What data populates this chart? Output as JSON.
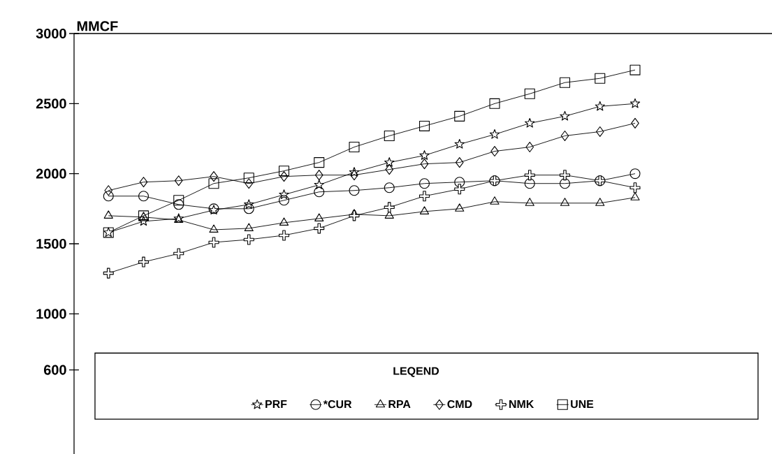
{
  "chart_data": {
    "type": "line",
    "ylabel": "MMCF",
    "legend_title": "LEQEND",
    "legend": "bottom",
    "line_style": "solid",
    "categories": [
      null,
      null,
      null,
      null,
      null,
      null,
      null,
      null,
      null,
      null,
      null,
      null,
      null,
      null,
      null,
      null
    ],
    "ylim": [
      0,
      3000
    ],
    "yticks": [
      600,
      1000,
      1500,
      2000,
      2500,
      3000
    ],
    "series": [
      {
        "name": "PRF",
        "color": "#000000",
        "marker": "star",
        "values": [
          1580,
          1660,
          1680,
          1740,
          1780,
          1850,
          1920,
          2010,
          2080,
          2130,
          2210,
          2280,
          2360,
          2410,
          2480,
          2500
        ]
      },
      {
        "name": "*CUR",
        "color": "#000000",
        "marker": "circle",
        "values": [
          1840,
          1840,
          1780,
          1750,
          1750,
          1810,
          1870,
          1880,
          1900,
          1930,
          1940,
          1950,
          1930,
          1930,
          1950,
          2000
        ]
      },
      {
        "name": "RPA",
        "color": "#000000",
        "marker": "triangle",
        "values": [
          1700,
          1690,
          1670,
          1600,
          1610,
          1650,
          1680,
          1710,
          1700,
          1730,
          1750,
          1800,
          1790,
          1790,
          1790,
          1830
        ]
      },
      {
        "name": "CMD",
        "color": "#000000",
        "marker": "diamond",
        "values": [
          1880,
          1940,
          1950,
          1980,
          1930,
          1980,
          1990,
          1990,
          2030,
          2070,
          2080,
          2160,
          2190,
          2270,
          2300,
          2360
        ]
      },
      {
        "name": "NMK",
        "color": "#000000",
        "marker": "cross",
        "values": [
          1290,
          1370,
          1430,
          1510,
          1530,
          1560,
          1610,
          1700,
          1760,
          1840,
          1890,
          1950,
          1990,
          1990,
          1950,
          1900
        ]
      },
      {
        "name": "UNE",
        "color": "#000000",
        "marker": "square",
        "values": [
          1580,
          1700,
          1810,
          1930,
          1970,
          2020,
          2080,
          2190,
          2270,
          2340,
          2410,
          2500,
          2570,
          2650,
          2680,
          2740
        ]
      }
    ]
  }
}
